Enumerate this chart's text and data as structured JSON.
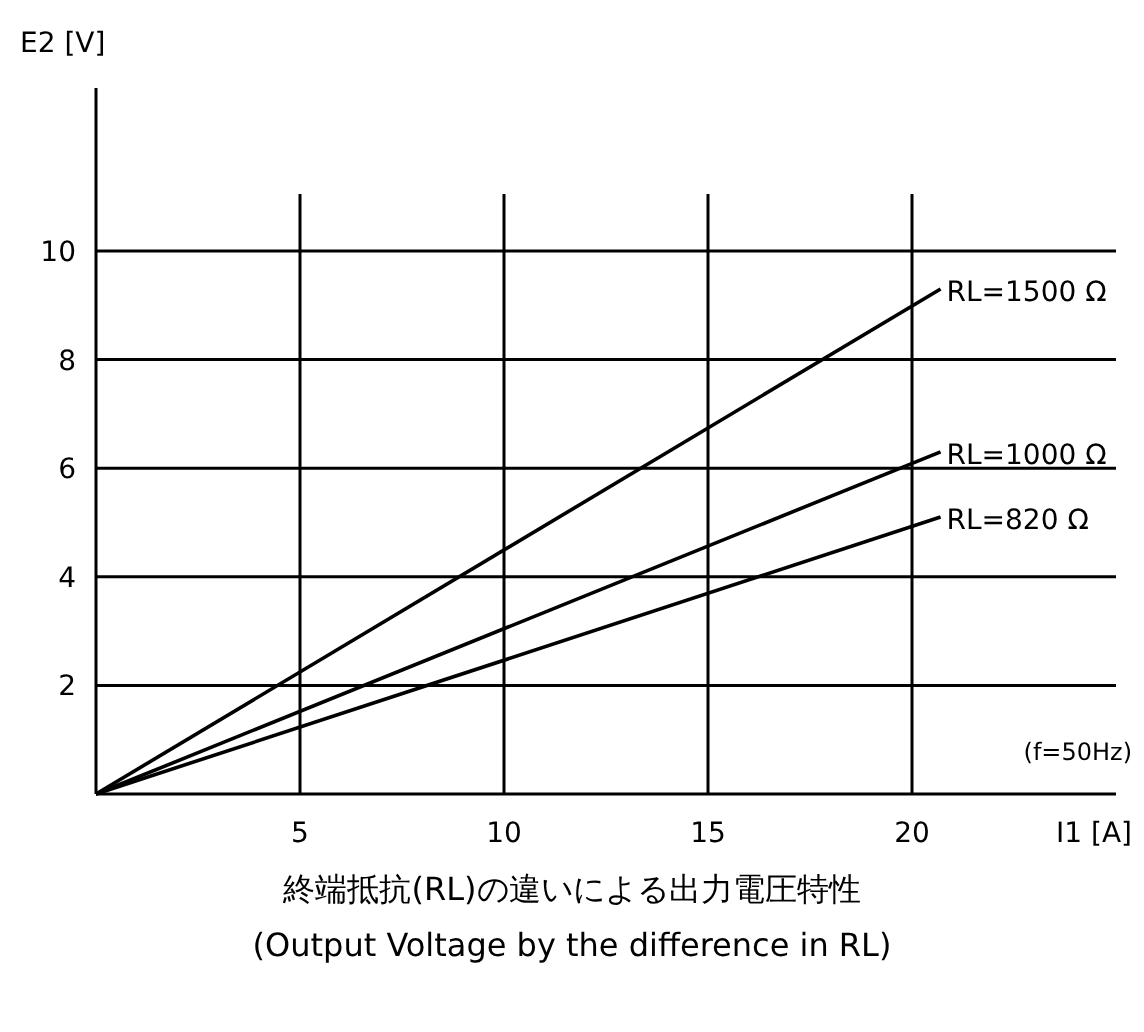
{
  "chart_data": {
    "type": "line",
    "xlabel": "I1 [A]",
    "ylabel": "E2 [V]",
    "x": [
      0,
      20.7
    ],
    "xlim": [
      0,
      25
    ],
    "ylim": [
      0,
      13
    ],
    "xticks": [
      5,
      10,
      15,
      20
    ],
    "yticks": [
      2,
      4,
      6,
      8,
      10
    ],
    "grid": true,
    "legend": false,
    "series": [
      {
        "name": "RL=1500 Ω",
        "color": "#000000",
        "values": [
          0,
          9.3
        ]
      },
      {
        "name": "RL=1000 Ω",
        "color": "#000000",
        "values": [
          0,
          6.3
        ]
      },
      {
        "name": "RL=820 Ω",
        "color": "#000000",
        "values": [
          0,
          5.1
        ]
      }
    ],
    "annotations": [
      "(f=50Hz)",
      "終端抵抗(RL)の違いによる出力電圧特性",
      "(Output Voltage by the difference in RL)"
    ]
  }
}
